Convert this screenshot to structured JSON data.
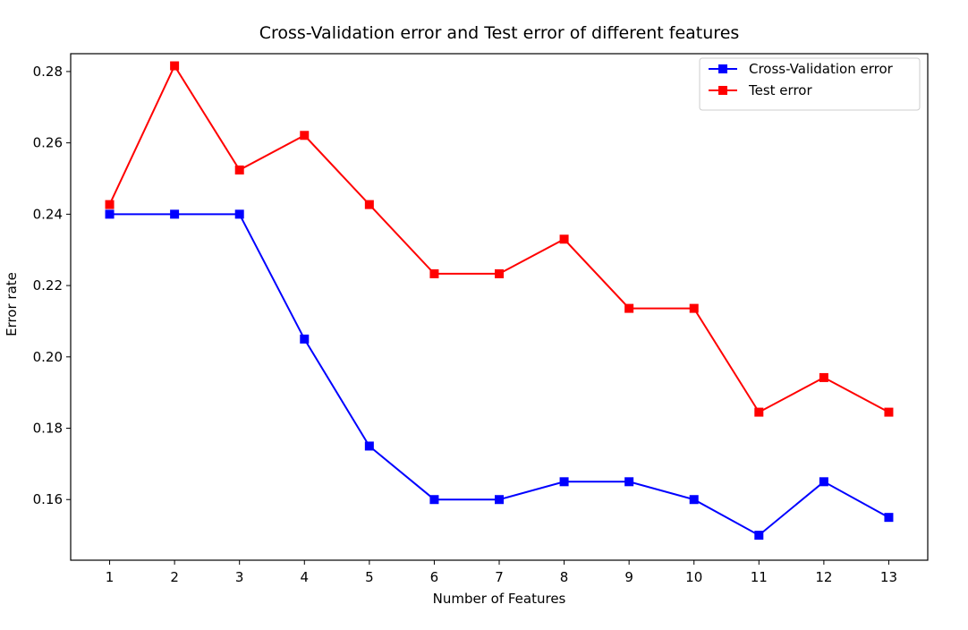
{
  "chart_data": {
    "type": "line",
    "title": "Cross-Validation error and Test error of different features",
    "xlabel": "Number of Features",
    "ylabel": "Error rate",
    "x": [
      1,
      2,
      3,
      4,
      5,
      6,
      7,
      8,
      9,
      10,
      11,
      12,
      13
    ],
    "x_tick_labels": [
      "1",
      "2",
      "3",
      "4",
      "5",
      "6",
      "7",
      "8",
      "9",
      "10",
      "11",
      "12",
      "13"
    ],
    "y_ticks": [
      0.16,
      0.18,
      0.2,
      0.22,
      0.24,
      0.26,
      0.28
    ],
    "y_tick_labels": [
      "0.16",
      "0.18",
      "0.20",
      "0.22",
      "0.24",
      "0.26",
      "0.28"
    ],
    "xlim": [
      0.4,
      13.6
    ],
    "ylim": [
      0.143,
      0.285
    ],
    "grid": false,
    "legend_position": "top-right",
    "series": [
      {
        "name": "Cross-Validation error",
        "color": "#0000ff",
        "marker": "square",
        "values": [
          0.24,
          0.24,
          0.24,
          0.205,
          0.175,
          0.16,
          0.16,
          0.165,
          0.165,
          0.16,
          0.15,
          0.165,
          0.155
        ]
      },
      {
        "name": "Test error",
        "color": "#ff0000",
        "marker": "square",
        "values": [
          0.2427,
          0.2816,
          0.2524,
          0.2621,
          0.2427,
          0.2233,
          0.2233,
          0.233,
          0.2136,
          0.2136,
          0.1845,
          0.1942,
          0.1845
        ]
      }
    ]
  }
}
